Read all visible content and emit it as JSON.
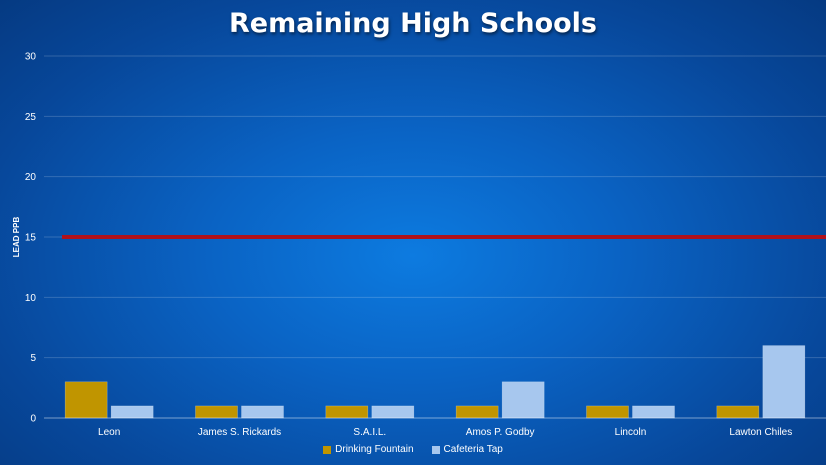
{
  "chart_data": {
    "type": "bar",
    "title": "Remaining High Schools",
    "ylabel": "LEAD PPB",
    "xlabel": "",
    "ylim": [
      0,
      30
    ],
    "yticks": [
      0,
      5,
      10,
      15,
      20,
      25,
      30
    ],
    "categories": [
      "Leon",
      "James S. Rickards",
      "S.A.I.L.",
      "Amos P. Godby",
      "Lincoln",
      "Lawton Chiles"
    ],
    "series": [
      {
        "name": "Drinking Fountain",
        "color": "#c09500",
        "values": [
          3,
          1,
          1,
          1,
          1,
          1
        ]
      },
      {
        "name": "Cafeteria Tap",
        "color": "#a7c7ee",
        "values": [
          1,
          1,
          1,
          3,
          1,
          6
        ]
      }
    ],
    "reference_line": {
      "value": 15,
      "color": "#b0121b"
    },
    "grid": true,
    "legend_position": "bottom"
  }
}
